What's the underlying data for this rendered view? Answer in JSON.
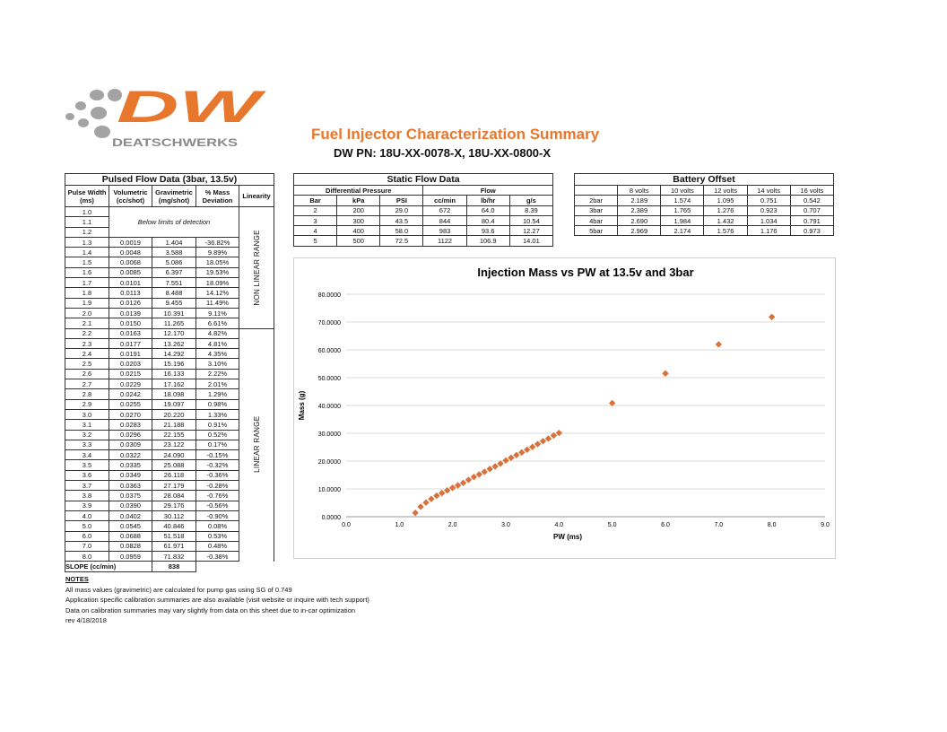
{
  "logo": {
    "text": "DW",
    "subtext": "DEATSCHWERKS",
    "brand_color": "#e8772e",
    "gray": "#9a9a9a"
  },
  "header": {
    "title": "Fuel Injector Characterization Summary",
    "subtitle": "DW PN: 18U-XX-0078-X, 18U-XX-0800-X"
  },
  "pulsed": {
    "title": "Pulsed Flow Data (3bar, 13.5v)",
    "headers": [
      "Pulse Width (ms)",
      "Volumetric (cc/shot)",
      "Gravimetric (mg/shot)",
      "% Mass Deviation",
      "Linearity"
    ],
    "below_label": "Below limits of detection",
    "below_rows": [
      "1.0",
      "1.1",
      "1.2"
    ],
    "nonlinear_label": "NON LINEAR RANGE",
    "linear_label": "LINEAR RANGE",
    "rows": [
      [
        "1.3",
        "0.0019",
        "1.404",
        "-36.82%"
      ],
      [
        "1.4",
        "0.0048",
        "3.588",
        "9.89%"
      ],
      [
        "1.5",
        "0.0068",
        "5.086",
        "18.05%"
      ],
      [
        "1.6",
        "0.0085",
        "6.397",
        "19.53%"
      ],
      [
        "1.7",
        "0.0101",
        "7.551",
        "18.09%"
      ],
      [
        "1.8",
        "0.0113",
        "8.488",
        "14.12%"
      ],
      [
        "1.9",
        "0.0126",
        "9.455",
        "11.49%"
      ],
      [
        "2.0",
        "0.0139",
        "10.391",
        "9.11%"
      ],
      [
        "2.1",
        "0.0150",
        "11.265",
        "6.61%"
      ],
      [
        "2.2",
        "0.0163",
        "12.170",
        "4.82%"
      ],
      [
        "2.3",
        "0.0177",
        "13.262",
        "4.81%"
      ],
      [
        "2.4",
        "0.0191",
        "14.292",
        "4.35%"
      ],
      [
        "2.5",
        "0.0203",
        "15.196",
        "3.10%"
      ],
      [
        "2.6",
        "0.0215",
        "16.133",
        "2.22%"
      ],
      [
        "2.7",
        "0.0229",
        "17.162",
        "2.01%"
      ],
      [
        "2.8",
        "0.0242",
        "18.098",
        "1.29%"
      ],
      [
        "2.9",
        "0.0255",
        "19.097",
        "0.98%"
      ],
      [
        "3.0",
        "0.0270",
        "20.220",
        "1.33%"
      ],
      [
        "3.1",
        "0.0283",
        "21.188",
        "0.91%"
      ],
      [
        "3.2",
        "0.0296",
        "22.155",
        "0.52%"
      ],
      [
        "3.3",
        "0.0309",
        "23.122",
        "0.17%"
      ],
      [
        "3.4",
        "0.0322",
        "24.090",
        "-0.15%"
      ],
      [
        "3.5",
        "0.0335",
        "25.088",
        "-0.32%"
      ],
      [
        "3.6",
        "0.0349",
        "26.118",
        "-0.36%"
      ],
      [
        "3.7",
        "0.0363",
        "27.179",
        "-0.28%"
      ],
      [
        "3.8",
        "0.0375",
        "28.084",
        "-0.76%"
      ],
      [
        "3.9",
        "0.0390",
        "29.176",
        "-0.56%"
      ],
      [
        "4.0",
        "0.0402",
        "30.112",
        "-0.90%"
      ],
      [
        "5.0",
        "0.0545",
        "40.846",
        "0.08%"
      ],
      [
        "6.0",
        "0.0688",
        "51.518",
        "0.53%"
      ],
      [
        "7.0",
        "0.0828",
        "61.971",
        "0.48%"
      ],
      [
        "8.0",
        "0.0959",
        "71.832",
        "-0.38%"
      ]
    ],
    "nonlinear_count": 9,
    "slope_label": "SLOPE (cc/min)",
    "slope_value": "838"
  },
  "static": {
    "title": "Static Flow Data",
    "group1": "Differential Pressure",
    "group2": "Flow",
    "headers": [
      "Bar",
      "kPa",
      "PSI",
      "cc/min",
      "lb/hr",
      "g/s"
    ],
    "rows": [
      [
        "2",
        "200",
        "29.0",
        "672",
        "64.0",
        "8.39"
      ],
      [
        "3",
        "300",
        "43.5",
        "844",
        "80.4",
        "10.54"
      ],
      [
        "4",
        "400",
        "58.0",
        "983",
        "93.6",
        "12.27"
      ],
      [
        "5",
        "500",
        "72.5",
        "1122",
        "106.9",
        "14.01"
      ]
    ]
  },
  "battery": {
    "title": "Battery Offset",
    "headers": [
      "",
      "8 volts",
      "10 volts",
      "12 volts",
      "14 volts",
      "16 volts"
    ],
    "rows": [
      [
        "2bar",
        "2.189",
        "1.574",
        "1.095",
        "0.751",
        "0.542"
      ],
      [
        "3bar",
        "2.389",
        "1.765",
        "1.276",
        "0.923",
        "0.707"
      ],
      [
        "4bar",
        "2.690",
        "1.984",
        "1.432",
        "1.034",
        "0.791"
      ],
      [
        "5bar",
        "2.969",
        "2.174",
        "1.576",
        "1.176",
        "0.973"
      ]
    ]
  },
  "notes": {
    "heading": "NOTES",
    "lines": [
      "All mass values (gravimetric) are calculated for pump gas using SG of 0.749",
      "Application specific calibration summaries are also available (visit website or inquire with tech support)",
      "Data on calibration summaries may vary slightly from data on this sheet due to in-car optimization",
      "rev 4/18/2018"
    ]
  },
  "chart_data": {
    "type": "scatter",
    "title": "Injection Mass vs PW at 13.5v and 3bar",
    "xlabel": "PW (ms)",
    "ylabel": "Mass (g)",
    "xlim": [
      0,
      9
    ],
    "ylim": [
      0,
      80
    ],
    "xticks": [
      "0.0",
      "1.0",
      "2.0",
      "3.0",
      "4.0",
      "5.0",
      "6.0",
      "7.0",
      "8.0",
      "9.0"
    ],
    "yticks": [
      "0.0000",
      "10.0000",
      "20.0000",
      "30.0000",
      "40.0000",
      "50.0000",
      "60.0000",
      "70.0000",
      "80.0000"
    ],
    "grid": "horizontal",
    "marker_color": "#d9713a",
    "legend": "none",
    "x": [
      1.3,
      1.4,
      1.5,
      1.6,
      1.7,
      1.8,
      1.9,
      2.0,
      2.1,
      2.2,
      2.3,
      2.4,
      2.5,
      2.6,
      2.7,
      2.8,
      2.9,
      3.0,
      3.1,
      3.2,
      3.3,
      3.4,
      3.5,
      3.6,
      3.7,
      3.8,
      3.9,
      4.0,
      5.0,
      6.0,
      7.0,
      8.0
    ],
    "y": [
      1.404,
      3.588,
      5.086,
      6.397,
      7.551,
      8.488,
      9.455,
      10.391,
      11.265,
      12.17,
      13.262,
      14.292,
      15.196,
      16.133,
      17.162,
      18.098,
      19.097,
      20.22,
      21.188,
      22.155,
      23.122,
      24.09,
      25.088,
      26.118,
      27.179,
      28.084,
      29.176,
      30.112,
      40.846,
      51.518,
      61.971,
      71.832
    ]
  }
}
